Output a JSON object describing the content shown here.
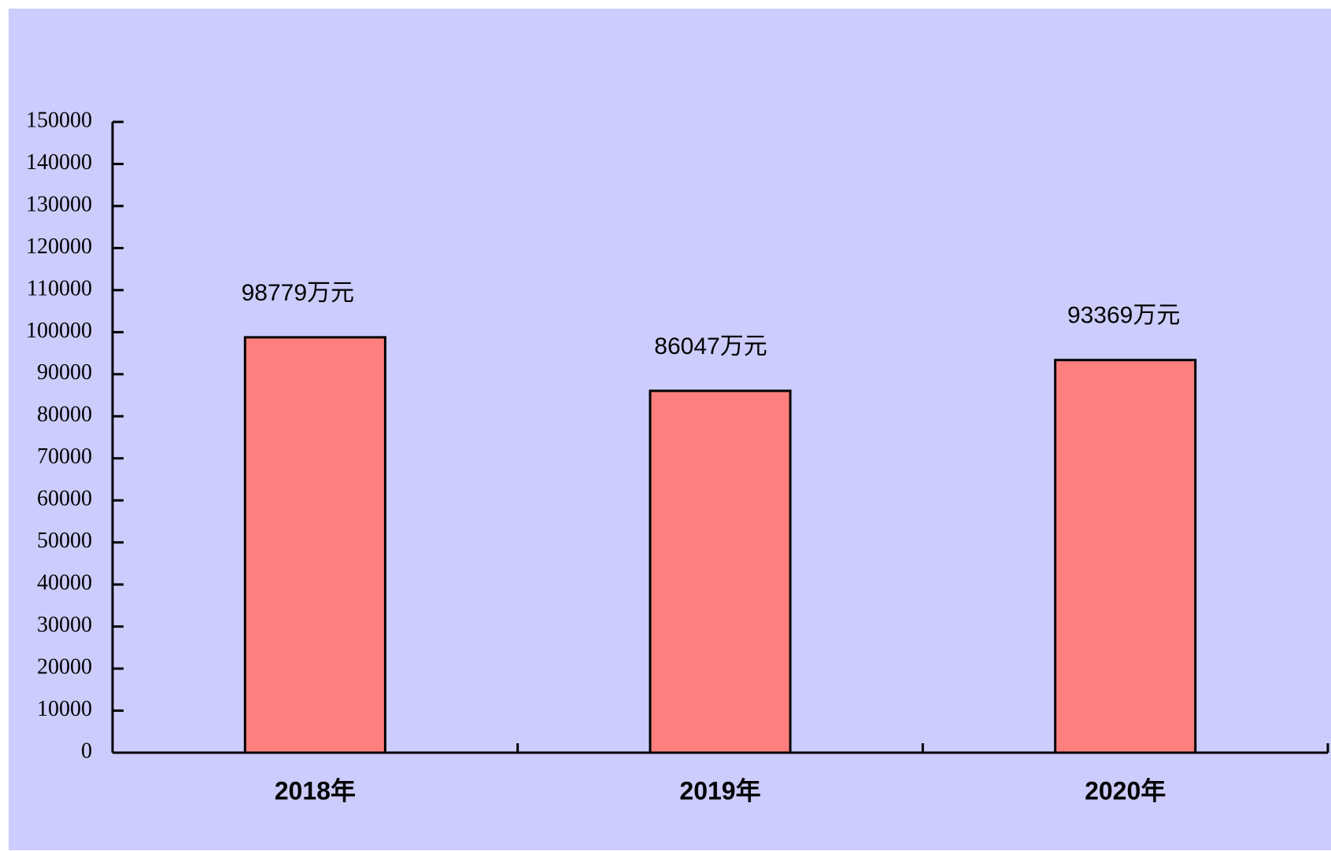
{
  "chart_data": {
    "type": "bar",
    "categories": [
      "2018年",
      "2019年",
      "2020年"
    ],
    "values": [
      98779,
      86047,
      93369
    ],
    "value_labels": [
      "98779万元",
      "86047万元",
      "93369万元"
    ],
    "color": "#ff7f7f",
    "ylim": [
      0,
      150000
    ],
    "yticks": [
      0,
      10000,
      20000,
      30000,
      40000,
      50000,
      60000,
      70000,
      80000,
      90000,
      100000,
      110000,
      120000,
      130000,
      140000,
      150000
    ]
  }
}
